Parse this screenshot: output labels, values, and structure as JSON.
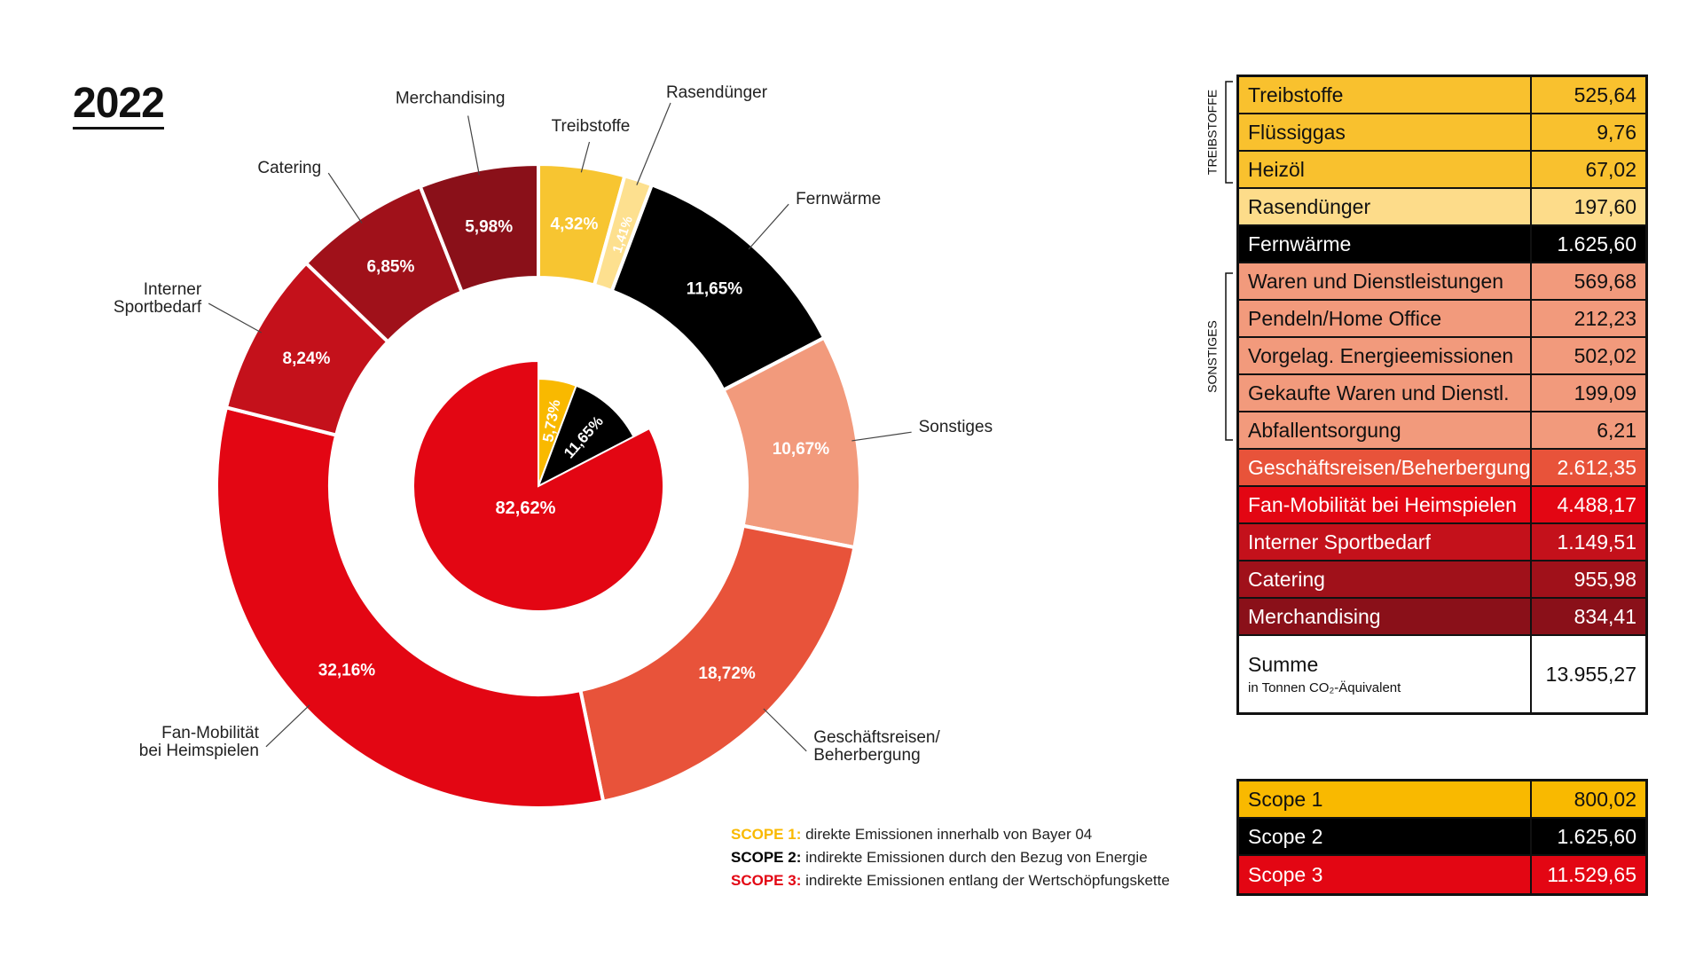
{
  "year": "2022",
  "chart_data": {
    "type": "pie",
    "outer_ring": [
      {
        "label": "Treibstoffe",
        "value": 4.32,
        "value_label": "4,32%",
        "color": "#f7c531"
      },
      {
        "label": "Rasendünger",
        "value": 1.41,
        "value_label": "1,41%",
        "color": "#fde08f"
      },
      {
        "label": "Fernwärme",
        "value": 11.65,
        "value_label": "11,65%",
        "color": "#000000"
      },
      {
        "label": "Sonstiges",
        "value": 10.67,
        "value_label": "10,67%",
        "color": "#f29a7c"
      },
      {
        "label": "Geschäftsreisen/\nBeherbergung",
        "value": 18.72,
        "value_label": "18,72%",
        "color": "#e8533a"
      },
      {
        "label": "Fan-Mobilität\nbei Heimspielen",
        "value": 32.16,
        "value_label": "32,16%",
        "color": "#e30613"
      },
      {
        "label": "Interner\nSportbedarf",
        "value": 8.24,
        "value_label": "8,24%",
        "color": "#c4111b"
      },
      {
        "label": "Catering",
        "value": 6.85,
        "value_label": "6,85%",
        "color": "#a0111a"
      },
      {
        "label": "Merchandising",
        "value": 5.98,
        "value_label": "5,98%",
        "color": "#8a1019"
      }
    ],
    "inner_pie": [
      {
        "scope": "Scope 1",
        "value": 5.73,
        "value_label": "5,73%",
        "color": "#f9b900"
      },
      {
        "scope": "Scope 2",
        "value": 11.65,
        "value_label": "11,65%",
        "color": "#000000"
      },
      {
        "scope": "Scope 3",
        "value": 82.62,
        "value_label": "82,62%",
        "color": "#e30613"
      }
    ]
  },
  "legend": [
    {
      "key": "SCOPE 1:",
      "text": "direkte Emissionen innerhalb von Bayer 04",
      "color": "#f9b900"
    },
    {
      "key": "SCOPE 2:",
      "text": "indirekte Emissionen durch den Bezug von Energie",
      "color": "#000000"
    },
    {
      "key": "SCOPE 3:",
      "text": "indirekte Emissionen entlang der Wertschöpfungskette",
      "color": "#e30613"
    }
  ],
  "table": {
    "rows": [
      {
        "label": "Treibstoffe",
        "value": "525,64",
        "bg": "#f9c12e",
        "fg": "#111111"
      },
      {
        "label": "Flüssiggas",
        "value": "9,76",
        "bg": "#f9c12e",
        "fg": "#111111"
      },
      {
        "label": "Heizöl",
        "value": "67,02",
        "bg": "#f9c12e",
        "fg": "#111111"
      },
      {
        "label": "Rasendünger",
        "value": "197,60",
        "bg": "#fddc8a",
        "fg": "#111111"
      },
      {
        "label": "Fernwärme",
        "value": "1.625,60",
        "bg": "#000000",
        "fg": "#ffffff"
      },
      {
        "label": "Waren und Dienstleistungen",
        "value": "569,68",
        "bg": "#f29a7c",
        "fg": "#111111"
      },
      {
        "label": "Pendeln/Home Office",
        "value": "212,23",
        "bg": "#f29a7c",
        "fg": "#111111"
      },
      {
        "label": "Vorgelag. Energieemissionen",
        "value": "502,02",
        "bg": "#f29a7c",
        "fg": "#111111"
      },
      {
        "label": "Gekaufte Waren und Dienstl.",
        "value": "199,09",
        "bg": "#f29a7c",
        "fg": "#111111"
      },
      {
        "label": "Abfallentsorgung",
        "value": "6,21",
        "bg": "#f29a7c",
        "fg": "#111111"
      },
      {
        "label": "Geschäftsreisen/Beherbergung",
        "value": "2.612,35",
        "bg": "#e8533a",
        "fg": "#ffffff"
      },
      {
        "label": "Fan-Mobilität bei Heimspielen",
        "value": "4.488,17",
        "bg": "#e30613",
        "fg": "#ffffff"
      },
      {
        "label": "Interner Sportbedarf",
        "value": "1.149,51",
        "bg": "#c4111b",
        "fg": "#ffffff"
      },
      {
        "label": "Catering",
        "value": "955,98",
        "bg": "#a0111a",
        "fg": "#ffffff"
      },
      {
        "label": "Merchandising",
        "value": "834,41",
        "bg": "#8a1019",
        "fg": "#ffffff"
      }
    ],
    "sum": {
      "label": "Summe",
      "unit": "in Tonnen CO₂-Äquivalent",
      "value": "13.955,27"
    },
    "bracket_labels": {
      "treibstoffe": "TREIBSTOFFE",
      "sonstiges": "SONSTIGES"
    }
  },
  "scope_table": [
    {
      "label": "Scope 1",
      "value": "800,02",
      "bg": "#f9b900",
      "fg": "#111111"
    },
    {
      "label": "Scope 2",
      "value": "1.625,60",
      "bg": "#000000",
      "fg": "#ffffff"
    },
    {
      "label": "Scope 3",
      "value": "11.529,65",
      "bg": "#e30613",
      "fg": "#ffffff"
    }
  ]
}
